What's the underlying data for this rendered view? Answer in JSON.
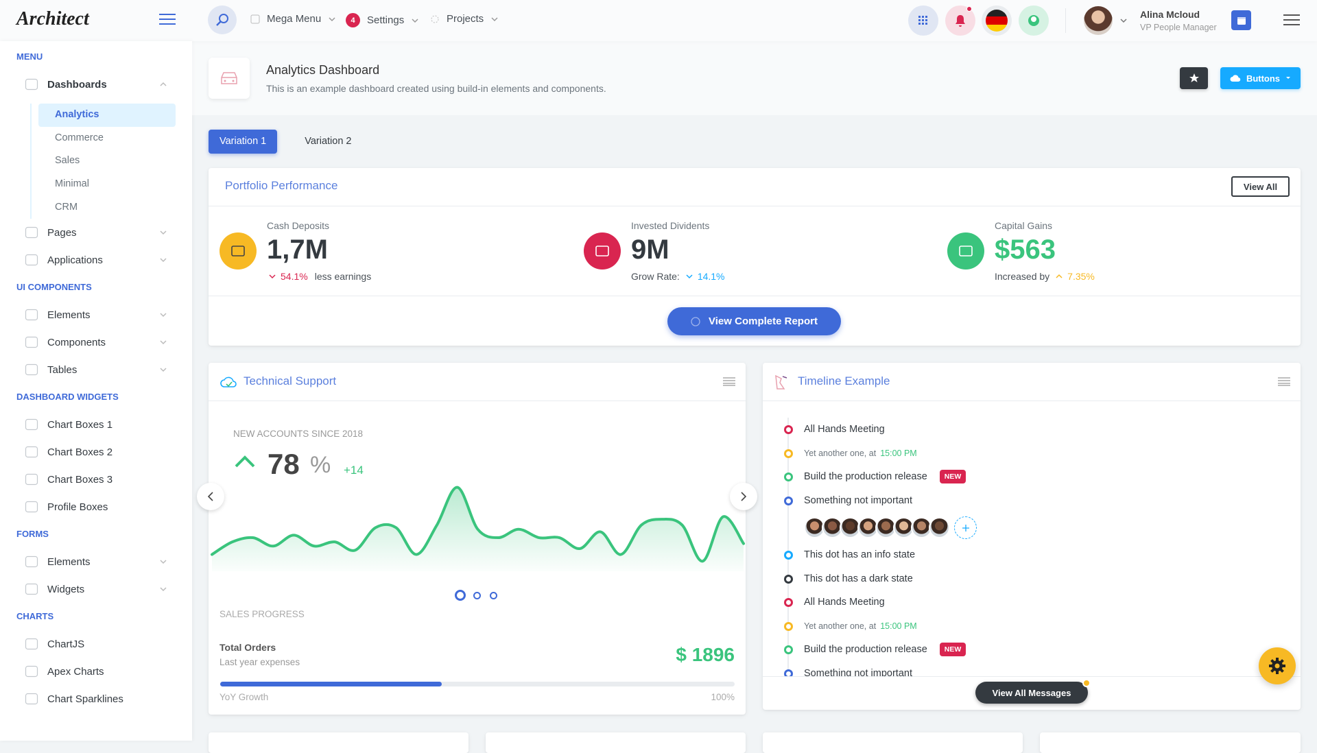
{
  "header": {
    "logo": "Architect",
    "nav": [
      {
        "label": "Mega Menu"
      },
      {
        "label": "Settings",
        "badge": "4"
      },
      {
        "label": "Projects"
      }
    ],
    "user": {
      "name": "Alina Mcloud",
      "role": "VP People Manager"
    }
  },
  "sidebar": {
    "sections": [
      {
        "title": "MENU",
        "items": [
          {
            "label": "Dashboards",
            "chevron": "up",
            "children": [
              {
                "label": "Analytics",
                "active": true
              },
              {
                "label": "Commerce"
              },
              {
                "label": "Sales"
              },
              {
                "label": "Minimal"
              },
              {
                "label": "CRM"
              }
            ]
          },
          {
            "label": "Pages",
            "chevron": "down"
          },
          {
            "label": "Applications",
            "chevron": "down"
          }
        ]
      },
      {
        "title": "UI COMPONENTS",
        "items": [
          {
            "label": "Elements",
            "chevron": "down"
          },
          {
            "label": "Components",
            "chevron": "down"
          },
          {
            "label": "Tables",
            "chevron": "down"
          }
        ]
      },
      {
        "title": "DASHBOARD WIDGETS",
        "items": [
          {
            "label": "Chart Boxes 1"
          },
          {
            "label": "Chart Boxes 2"
          },
          {
            "label": "Chart Boxes 3"
          },
          {
            "label": "Profile Boxes"
          }
        ]
      },
      {
        "title": "FORMS",
        "items": [
          {
            "label": "Elements",
            "chevron": "down"
          },
          {
            "label": "Widgets",
            "chevron": "down"
          }
        ]
      },
      {
        "title": "CHARTS",
        "items": [
          {
            "label": "ChartJS"
          },
          {
            "label": "Apex Charts"
          },
          {
            "label": "Chart Sparklines"
          }
        ]
      }
    ]
  },
  "page_header": {
    "title": "Analytics Dashboard",
    "subtitle": "This is an example dashboard created using build-in elements and components.",
    "button": "Buttons"
  },
  "tabs": [
    {
      "label": "Variation 1",
      "active": true
    },
    {
      "label": "Variation 2"
    }
  ],
  "portfolio": {
    "title": "Portfolio Performance",
    "action": "View All",
    "button": "View Complete Report",
    "metrics": [
      {
        "label": "Cash Deposits",
        "value": "1,7M",
        "value_color": "#343a40",
        "icon_color": "#f7b924",
        "change": "54.1%",
        "trend": "down",
        "change_color": "#d92550",
        "note": "less earnings",
        "note_position": "after"
      },
      {
        "label": "Invested Dividents",
        "value": "9M",
        "value_color": "#343a40",
        "icon_color": "#d92550",
        "change": "14.1%",
        "trend": "down",
        "change_color": "#16aaff",
        "note": "Grow Rate:",
        "note_position": "before"
      },
      {
        "label": "Capital Gains",
        "value": "$563",
        "value_color": "#3ac47d",
        "icon_color": "#3ac47d",
        "change": "7.35%",
        "trend": "up",
        "change_color": "#f7b924",
        "note": "Increased by",
        "note_position": "before"
      }
    ]
  },
  "support": {
    "title": "Technical Support",
    "kicker": "NEW ACCOUNTS SINCE 2018",
    "value": "78",
    "unit": "%",
    "delta": "+14",
    "sparkline": {
      "values": [
        20,
        35,
        40,
        30,
        43,
        30,
        35,
        25,
        52,
        52,
        20,
        55,
        100,
        50,
        40,
        50,
        40,
        40,
        27,
        47,
        20,
        55,
        62,
        55,
        12,
        65,
        33
      ],
      "ylim": [
        0,
        125
      ],
      "color": "#3ac47d"
    },
    "section": "SALES PROGRESS",
    "orders_title": "Total Orders",
    "orders_subtitle": "Last year expenses",
    "amount": "$ 1896",
    "progress": {
      "label": "YoY Growth",
      "max_label": "100%",
      "value": 43,
      "color": "#3f6ad8"
    }
  },
  "timeline": {
    "title": "Timeline Example",
    "button": "View All Messages",
    "items": [
      {
        "text": "All Hands Meeting",
        "color": "#d92550"
      },
      {
        "text": "Yet another one, at",
        "time": "15:00 PM",
        "color": "#f7b924"
      },
      {
        "text": "Build the production release",
        "badge": "NEW",
        "color": "#3ac47d"
      },
      {
        "text": "Something not important",
        "color": "#3f6ad8",
        "avatars": true
      },
      {
        "text": "This dot has an info state",
        "color": "#16aaff"
      },
      {
        "text": "This dot has a dark state",
        "color": "#343a40"
      },
      {
        "text": "All Hands Meeting",
        "color": "#d92550"
      },
      {
        "text": "Yet another one, at",
        "time": "15:00 PM",
        "color": "#f7b924"
      },
      {
        "text": "Build the production release",
        "badge": "NEW",
        "color": "#3ac47d"
      },
      {
        "text": "Something not important",
        "color": "#3f6ad8"
      }
    ]
  }
}
